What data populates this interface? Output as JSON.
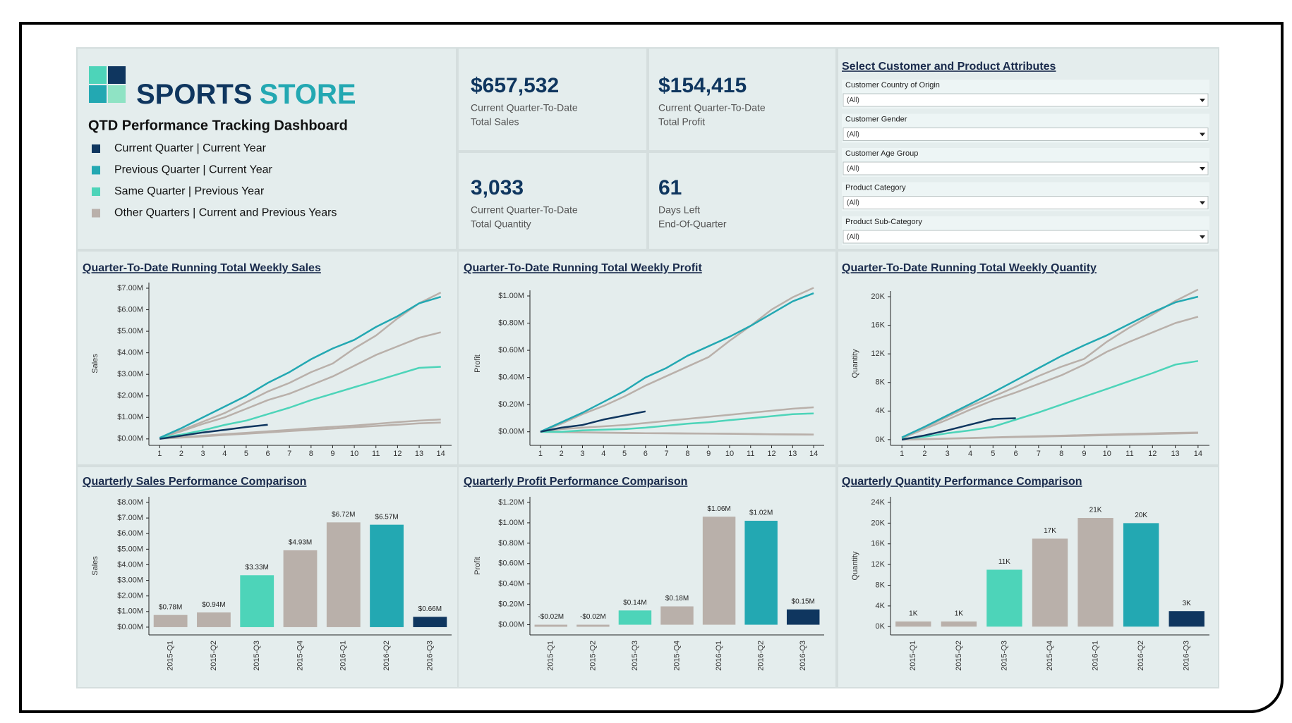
{
  "header": {
    "brand_first": "SPORTS",
    "brand_second": "STORE",
    "subtitle": "QTD Performance Tracking Dashboard",
    "legend": [
      {
        "name": "Current Quarter | Current Year",
        "color": "#0f365f"
      },
      {
        "name": "Previous Quarter | Current Year",
        "color": "#23a8b2"
      },
      {
        "name": "Same Quarter | Previous Year",
        "color": "#4dd4b9"
      },
      {
        "name": "Other Quarters | Current and Previous Years",
        "color": "#b9b0aa"
      }
    ]
  },
  "kpis": [
    {
      "value": "$657,532",
      "line1": "Current Quarter-To-Date",
      "line2": "Total Sales"
    },
    {
      "value": "$154,415",
      "line1": "Current Quarter-To-Date",
      "line2": "Total Profit"
    },
    {
      "value": "3,033",
      "line1": "Current Quarter-To-Date",
      "line2": "Total Quantity"
    },
    {
      "value": "61",
      "line1": "Days Left",
      "line2": "End-Of-Quarter"
    }
  ],
  "filters": {
    "title": "Select Customer and Product Attributes",
    "items": [
      {
        "label": "Customer Country of Origin",
        "value": "(All)"
      },
      {
        "label": "Customer Gender",
        "value": "(All)"
      },
      {
        "label": "Customer Age Group",
        "value": "(All)"
      },
      {
        "label": "Product Category",
        "value": "(All)"
      },
      {
        "label": "Product Sub-Category",
        "value": "(All)"
      }
    ]
  },
  "chart_data": [
    {
      "type": "line",
      "title": "Quarter-To-Date Running Total Weekly Sales",
      "ylabel": "Sales",
      "x": [
        1,
        2,
        3,
        4,
        5,
        6,
        7,
        8,
        9,
        10,
        11,
        12,
        13,
        14
      ],
      "xlim": [
        0.5,
        14.5
      ],
      "xticks": [
        1,
        2,
        3,
        4,
        5,
        6,
        7,
        8,
        9,
        10,
        11,
        12,
        13,
        14
      ],
      "ylim": [
        -300000,
        7000000
      ],
      "yticks": [
        {
          "value": 0,
          "label": "$0.00M"
        },
        {
          "value": 1000000,
          "label": "$1.00M"
        },
        {
          "value": 2000000,
          "label": "$2.00M"
        },
        {
          "value": 3000000,
          "label": "$3.00M"
        },
        {
          "value": 4000000,
          "label": "$4.00M"
        },
        {
          "value": 5000000,
          "label": "$5.00M"
        },
        {
          "value": 6000000,
          "label": "$6.00M"
        },
        {
          "value": 7000000,
          "label": "$7.00M"
        }
      ],
      "series": [
        {
          "color": "#b9b0aa",
          "values": [
            10000,
            60000,
            120000,
            180000,
            240000,
            300000,
            360000,
            420000,
            480000,
            540000,
            600000,
            660000,
            720000,
            760000
          ]
        },
        {
          "color": "#b9b0aa",
          "values": [
            20000,
            80000,
            150000,
            220000,
            280000,
            350000,
            420000,
            500000,
            560000,
            620000,
            700000,
            780000,
            850000,
            900000
          ]
        },
        {
          "color": "#b9b0aa",
          "values": [
            50000,
            350000,
            700000,
            1000000,
            1400000,
            1800000,
            2100000,
            2500000,
            2900000,
            3400000,
            3900000,
            4300000,
            4700000,
            4950000
          ]
        },
        {
          "color": "#b9b0aa",
          "values": [
            50000,
            400000,
            800000,
            1200000,
            1700000,
            2200000,
            2600000,
            3100000,
            3500000,
            4200000,
            4800000,
            5600000,
            6300000,
            6800000
          ]
        },
        {
          "color": "#4dd4b9",
          "values": [
            50000,
            200000,
            400000,
            650000,
            850000,
            1150000,
            1450000,
            1800000,
            2100000,
            2400000,
            2700000,
            3000000,
            3300000,
            3350000
          ]
        },
        {
          "color": "#23a8b2",
          "values": [
            50000,
            500000,
            1000000,
            1500000,
            2000000,
            2600000,
            3100000,
            3700000,
            4200000,
            4600000,
            5200000,
            5700000,
            6300000,
            6600000
          ]
        },
        {
          "color": "#0f365f",
          "values": [
            0,
            150000,
            300000,
            420000,
            550000,
            660000,
            null,
            null,
            null,
            null,
            null,
            null,
            null,
            null
          ]
        }
      ]
    },
    {
      "type": "line",
      "title": "Quarter-To-Date Running Total Weekly Profit",
      "ylabel": "Profit",
      "x": [
        1,
        2,
        3,
        4,
        5,
        6,
        7,
        8,
        9,
        10,
        11,
        12,
        13,
        14
      ],
      "xlim": [
        0.5,
        14.5
      ],
      "xticks": [
        1,
        2,
        3,
        4,
        5,
        6,
        7,
        8,
        9,
        10,
        11,
        12,
        13,
        14
      ],
      "ylim": [
        -100000,
        1000000
      ],
      "yticks": [
        {
          "value": 0,
          "label": "$0.00M"
        },
        {
          "value": 200000,
          "label": "$0.20M"
        },
        {
          "value": 400000,
          "label": "$0.40M"
        },
        {
          "value": 600000,
          "label": "$0.60M"
        },
        {
          "value": 800000,
          "label": "$0.80M"
        },
        {
          "value": 1000000,
          "label": "$1.00M"
        }
      ],
      "series": [
        {
          "color": "#b9b0aa",
          "values": [
            0,
            -2000,
            -4000,
            -6000,
            -8000,
            -10000,
            -11000,
            -12000,
            -13000,
            -14000,
            -16000,
            -18000,
            -19000,
            -20000
          ]
        },
        {
          "color": "#b9b0aa",
          "values": [
            0,
            -3000,
            -5000,
            -7000,
            -9000,
            -11000,
            -12000,
            -13000,
            -14000,
            -15000,
            -17000,
            -19000,
            -20000,
            -21000
          ]
        },
        {
          "color": "#b9b0aa",
          "values": [
            0,
            20000,
            30000,
            40000,
            50000,
            65000,
            80000,
            95000,
            110000,
            125000,
            140000,
            155000,
            170000,
            180000
          ]
        },
        {
          "color": "#b9b0aa",
          "values": [
            0,
            60000,
            130000,
            190000,
            260000,
            340000,
            410000,
            480000,
            550000,
            670000,
            780000,
            900000,
            990000,
            1060000
          ]
        },
        {
          "color": "#4dd4b9",
          "values": [
            0,
            0,
            10000,
            15000,
            20000,
            30000,
            45000,
            60000,
            70000,
            85000,
            100000,
            115000,
            130000,
            135000
          ]
        },
        {
          "color": "#23a8b2",
          "values": [
            0,
            70000,
            140000,
            220000,
            300000,
            400000,
            470000,
            560000,
            630000,
            700000,
            780000,
            870000,
            960000,
            1020000
          ]
        },
        {
          "color": "#0f365f",
          "values": [
            0,
            30000,
            50000,
            90000,
            120000,
            150000,
            null,
            null,
            null,
            null,
            null,
            null,
            null,
            null
          ]
        }
      ]
    },
    {
      "type": "line",
      "title": "Quarter-To-Date Running Total Weekly Quantity",
      "ylabel": "Quantity",
      "x": [
        1,
        2,
        3,
        4,
        5,
        6,
        7,
        8,
        9,
        10,
        11,
        12,
        13,
        14
      ],
      "xlim": [
        0.5,
        14.5
      ],
      "xticks": [
        1,
        2,
        3,
        4,
        5,
        6,
        7,
        8,
        9,
        10,
        11,
        12,
        13,
        14
      ],
      "ylim": [
        -800,
        20000
      ],
      "yticks": [
        {
          "value": 0,
          "label": "0K"
        },
        {
          "value": 4000,
          "label": "4K"
        },
        {
          "value": 8000,
          "label": "8K"
        },
        {
          "value": 12000,
          "label": "12K"
        },
        {
          "value": 16000,
          "label": "16K"
        },
        {
          "value": 20000,
          "label": "20K"
        }
      ],
      "series": [
        {
          "color": "#b9b0aa",
          "values": [
            0,
            70,
            140,
            210,
            280,
            350,
            420,
            490,
            560,
            630,
            700,
            780,
            860,
            930
          ]
        },
        {
          "color": "#b9b0aa",
          "values": [
            0,
            80,
            160,
            240,
            320,
            400,
            480,
            560,
            640,
            720,
            800,
            880,
            950,
            1000
          ]
        },
        {
          "color": "#b9b0aa",
          "values": [
            200,
            1500,
            2800,
            4200,
            5500,
            6600,
            7800,
            9000,
            10500,
            12300,
            13700,
            15000,
            16300,
            17200
          ]
        },
        {
          "color": "#b9b0aa",
          "values": [
            200,
            1700,
            3200,
            4700,
            6000,
            7400,
            8900,
            10200,
            11300,
            13700,
            15700,
            17500,
            19400,
            21000
          ]
        },
        {
          "color": "#4dd4b9",
          "values": [
            100,
            400,
            900,
            1300,
            1800,
            2800,
            3800,
            4900,
            6000,
            7100,
            8200,
            9300,
            10500,
            11000
          ]
        },
        {
          "color": "#23a8b2",
          "values": [
            300,
            1800,
            3400,
            5000,
            6600,
            8300,
            10000,
            11700,
            13200,
            14600,
            16200,
            17800,
            19200,
            20000
          ]
        },
        {
          "color": "#0f365f",
          "values": [
            0,
            600,
            1300,
            2100,
            2900,
            3000,
            null,
            null,
            null,
            null,
            null,
            null,
            null,
            null
          ]
        }
      ]
    },
    {
      "type": "bar",
      "title": "Quarterly Sales Performance Comparison",
      "ylabel": "Sales",
      "categories": [
        "2015-Q1",
        "2015-Q2",
        "2015-Q3",
        "2015-Q4",
        "2016-Q1",
        "2016-Q2",
        "2016-Q3"
      ],
      "values": [
        780000,
        940000,
        3330000,
        4930000,
        6720000,
        6570000,
        660000
      ],
      "value_labels": [
        "$0.78M",
        "$0.94M",
        "$3.33M",
        "$4.93M",
        "$6.72M",
        "$6.57M",
        "$0.66M"
      ],
      "colors": [
        "#b9b0aa",
        "#b9b0aa",
        "#4dd4b9",
        "#b9b0aa",
        "#b9b0aa",
        "#23a8b2",
        "#0f365f"
      ],
      "ylim": [
        -500000,
        8000000
      ],
      "yticks": [
        {
          "value": 0,
          "label": "$0.00M"
        },
        {
          "value": 1000000,
          "label": "$1.00M"
        },
        {
          "value": 2000000,
          "label": "$2.00M"
        },
        {
          "value": 3000000,
          "label": "$3.00M"
        },
        {
          "value": 4000000,
          "label": "$4.00M"
        },
        {
          "value": 5000000,
          "label": "$5.00M"
        },
        {
          "value": 6000000,
          "label": "$6.00M"
        },
        {
          "value": 7000000,
          "label": "$7.00M"
        },
        {
          "value": 8000000,
          "label": "$8.00M"
        }
      ]
    },
    {
      "type": "bar",
      "title": "Quarterly Profit Performance Comparison",
      "ylabel": "Profit",
      "categories": [
        "2015-Q1",
        "2015-Q2",
        "2015-Q3",
        "2015-Q4",
        "2016-Q1",
        "2016-Q2",
        "2016-Q3"
      ],
      "values": [
        -20000,
        -20000,
        140000,
        180000,
        1060000,
        1020000,
        150000
      ],
      "value_labels": [
        "-$0.02M",
        "-$0.02M",
        "$0.14M",
        "$0.18M",
        "$1.06M",
        "$1.02M",
        "$0.15M"
      ],
      "colors": [
        "#b9b0aa",
        "#b9b0aa",
        "#4dd4b9",
        "#b9b0aa",
        "#b9b0aa",
        "#23a8b2",
        "#0f365f"
      ],
      "ylim": [
        -100000,
        1200000
      ],
      "yticks": [
        {
          "value": 0,
          "label": "$0.00M"
        },
        {
          "value": 200000,
          "label": "$0.20M"
        },
        {
          "value": 400000,
          "label": "$0.40M"
        },
        {
          "value": 600000,
          "label": "$0.60M"
        },
        {
          "value": 800000,
          "label": "$0.80M"
        },
        {
          "value": 1000000,
          "label": "$1.00M"
        },
        {
          "value": 1200000,
          "label": "$1.20M"
        }
      ]
    },
    {
      "type": "bar",
      "title": "Quarterly Quantity Performance Comparison",
      "ylabel": "Quantity",
      "categories": [
        "2015-Q1",
        "2015-Q2",
        "2015-Q3",
        "2015-Q4",
        "2016-Q1",
        "2016-Q2",
        "2016-Q3"
      ],
      "values": [
        1000,
        1000,
        11000,
        17000,
        21000,
        20000,
        3000
      ],
      "value_labels": [
        "1K",
        "1K",
        "11K",
        "17K",
        "21K",
        "20K",
        "3K"
      ],
      "colors": [
        "#b9b0aa",
        "#b9b0aa",
        "#4dd4b9",
        "#b9b0aa",
        "#b9b0aa",
        "#23a8b2",
        "#0f365f"
      ],
      "ylim": [
        -1600,
        24000
      ],
      "yticks": [
        {
          "value": 0,
          "label": "0K"
        },
        {
          "value": 4000,
          "label": "4K"
        },
        {
          "value": 8000,
          "label": "8K"
        },
        {
          "value": 12000,
          "label": "12K"
        },
        {
          "value": 16000,
          "label": "16K"
        },
        {
          "value": 20000,
          "label": "20K"
        },
        {
          "value": 24000,
          "label": "24K"
        }
      ]
    }
  ]
}
